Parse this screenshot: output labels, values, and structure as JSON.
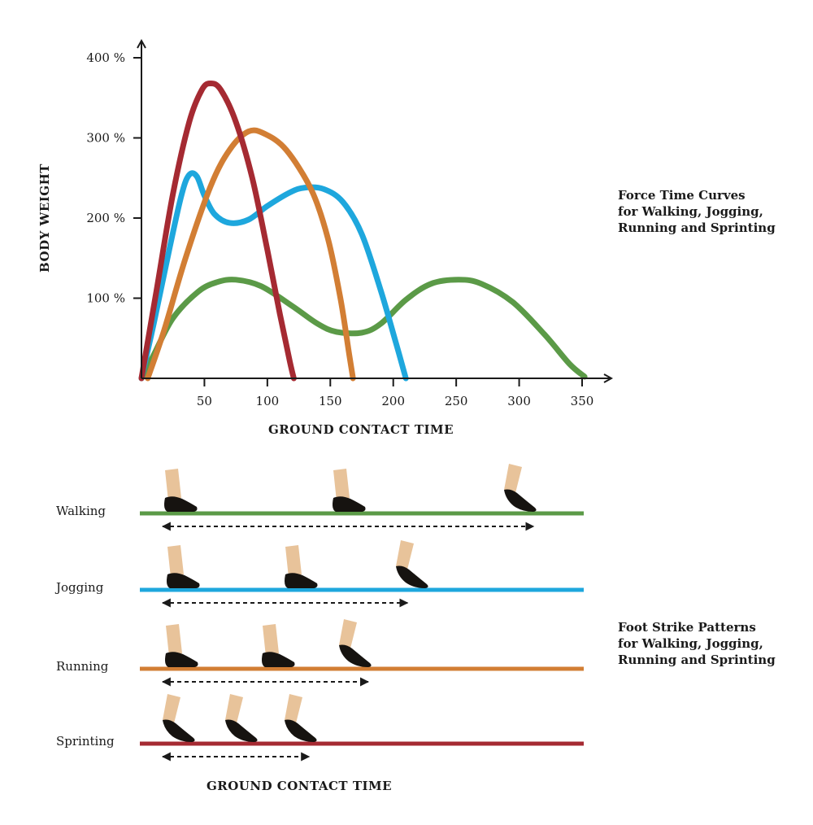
{
  "chart_data": {
    "type": "line",
    "title": "Force Time Curves for Walking, Jogging, Running and Sprinting",
    "caption_lines": [
      "Force Time Curves",
      "for Walking, Jogging,",
      "Running and Sprinting"
    ],
    "xlabel": "GROUND CONTACT TIME",
    "ylabel": "BODY WEIGHT",
    "xlim": [
      0,
      370
    ],
    "ylim": [
      0,
      410
    ],
    "x_ticks": [
      50,
      100,
      150,
      200,
      250,
      300,
      350
    ],
    "y_ticks": [
      {
        "value": 100,
        "label": "100 %"
      },
      {
        "value": 200,
        "label": "200 %"
      },
      {
        "value": 300,
        "label": "300 %"
      },
      {
        "value": 400,
        "label": "400 %"
      }
    ],
    "grid": false,
    "legend": "none",
    "series": [
      {
        "name": "Walking",
        "color": "#5b9a47",
        "points": [
          [
            0,
            0
          ],
          [
            10,
            30
          ],
          [
            25,
            75
          ],
          [
            45,
            108
          ],
          [
            60,
            120
          ],
          [
            75,
            123
          ],
          [
            95,
            115
          ],
          [
            120,
            90
          ],
          [
            140,
            68
          ],
          [
            155,
            58
          ],
          [
            175,
            57
          ],
          [
            190,
            68
          ],
          [
            210,
            98
          ],
          [
            230,
            118
          ],
          [
            252,
            123
          ],
          [
            270,
            118
          ],
          [
            295,
            95
          ],
          [
            320,
            55
          ],
          [
            340,
            18
          ],
          [
            352,
            2
          ]
        ]
      },
      {
        "name": "Jogging",
        "color": "#1ea7dd",
        "points": [
          [
            0,
            0
          ],
          [
            10,
            70
          ],
          [
            22,
            160
          ],
          [
            32,
            230
          ],
          [
            38,
            254
          ],
          [
            44,
            252
          ],
          [
            50,
            228
          ],
          [
            58,
            205
          ],
          [
            70,
            194
          ],
          [
            85,
            198
          ],
          [
            100,
            215
          ],
          [
            118,
            232
          ],
          [
            130,
            238
          ],
          [
            145,
            236
          ],
          [
            160,
            220
          ],
          [
            175,
            180
          ],
          [
            190,
            110
          ],
          [
            202,
            45
          ],
          [
            210,
            0
          ]
        ]
      },
      {
        "name": "Running",
        "color": "#d27e34",
        "points": [
          [
            5,
            0
          ],
          [
            18,
            60
          ],
          [
            35,
            150
          ],
          [
            55,
            240
          ],
          [
            70,
            285
          ],
          [
            85,
            308
          ],
          [
            98,
            305
          ],
          [
            115,
            285
          ],
          [
            135,
            235
          ],
          [
            148,
            175
          ],
          [
            158,
            100
          ],
          [
            165,
            30
          ],
          [
            168,
            0
          ]
        ]
      },
      {
        "name": "Sprinting",
        "color": "#a52a32",
        "points": [
          [
            0,
            0
          ],
          [
            12,
            110
          ],
          [
            25,
            230
          ],
          [
            38,
            320
          ],
          [
            48,
            360
          ],
          [
            55,
            368
          ],
          [
            63,
            360
          ],
          [
            75,
            320
          ],
          [
            88,
            250
          ],
          [
            100,
            160
          ],
          [
            110,
            80
          ],
          [
            118,
            20
          ],
          [
            121,
            0
          ]
        ]
      }
    ]
  },
  "foot_strikes": {
    "caption_lines": [
      "Foot Strike Patterns",
      "for Walking, Jogging,",
      "Running and Sprinting"
    ],
    "xlabel": "GROUND CONTACT TIME",
    "rows": [
      {
        "label": "Walking",
        "color": "#5b9a47",
        "strikes": 3,
        "span_fraction": 0.885
      },
      {
        "label": "Jogging",
        "color": "#1ea7dd",
        "strikes": 3,
        "span_fraction": 0.587
      },
      {
        "label": "Running",
        "color": "#d27e34",
        "strikes": 3,
        "span_fraction": 0.494
      },
      {
        "label": "Sprinting",
        "color": "#a52a32",
        "strikes": 3,
        "span_fraction": 0.354
      }
    ]
  }
}
